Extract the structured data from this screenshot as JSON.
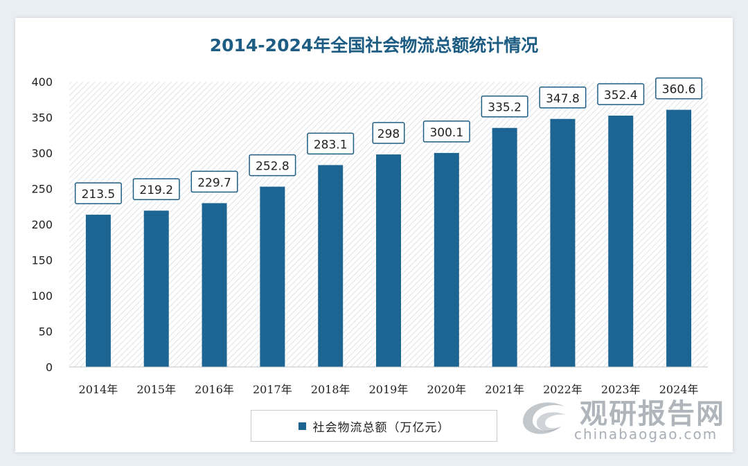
{
  "chart_data": {
    "type": "bar",
    "title": "2014-2024年全国社会物流总额统计情况",
    "categories": [
      "2014年",
      "2015年",
      "2016年",
      "2017年",
      "2018年",
      "2019年",
      "2020年",
      "2021年",
      "2022年",
      "2023年",
      "2024年"
    ],
    "series": [
      {
        "name": "社会物流总额（万亿元）",
        "values": [
          213.5,
          219.2,
          229.7,
          252.8,
          283.1,
          298,
          300.1,
          335.2,
          347.8,
          352.4,
          360.6
        ]
      }
    ],
    "value_labels": [
      "213.5",
      "219.2",
      "229.7",
      "252.8",
      "283.1",
      "298",
      "300.1",
      "335.2",
      "347.8",
      "352.4",
      "360.6"
    ],
    "ylim": [
      0,
      400
    ],
    "yticks": [
      0,
      50,
      100,
      150,
      200,
      250,
      300,
      350,
      400
    ],
    "legend_position": "bottom",
    "grid": false,
    "bar_color": "#1c6491"
  },
  "watermark": {
    "main": "观研报告网",
    "sub": "chinabaogao.com"
  }
}
